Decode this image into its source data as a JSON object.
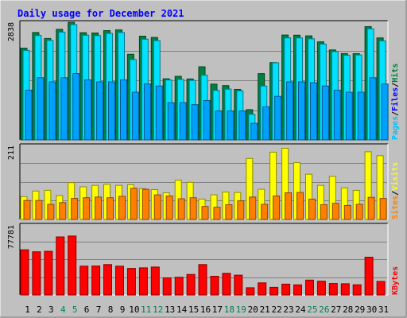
{
  "chart_data": {
    "type": "bar",
    "title": "Daily usage for December 2021",
    "categories": [
      "1",
      "2",
      "3",
      "4",
      "5",
      "6",
      "7",
      "8",
      "9",
      "10",
      "11",
      "12",
      "13",
      "14",
      "15",
      "16",
      "17",
      "18",
      "19",
      "20",
      "21",
      "22",
      "23",
      "24",
      "25",
      "26",
      "27",
      "28",
      "29",
      "30",
      "31"
    ],
    "weekend_days": [
      "4",
      "5",
      "11",
      "12",
      "18",
      "19",
      "25",
      "26"
    ],
    "panels": [
      {
        "id": "top",
        "max_label": "2838",
        "ymax": 2838,
        "legend": [
          "Hits",
          "Files",
          "Pages"
        ],
        "series": [
          {
            "name": "Hits",
            "color": "#008040",
            "values": [
              2212,
              2591,
              2446,
              2667,
              2838,
              2587,
              2580,
              2637,
              2653,
              2066,
              2502,
              2472,
              1474,
              1535,
              1471,
              1764,
              1346,
              1309,
              1217,
              731,
              1599,
              1865,
              2529,
              2526,
              2511,
              2367,
              2170,
              2083,
              2081,
              2733,
              2460
            ]
          },
          {
            "name": "Files",
            "color": "#00e0ff",
            "values": [
              2160,
              2520,
              2400,
              2600,
              2780,
              2525,
              2515,
              2570,
              2590,
              1940,
              2430,
              2395,
              1445,
              1460,
              1435,
              1560,
              1195,
              1225,
              1185,
              620,
              1300,
              1860,
              2460,
              2460,
              2440,
              2310,
              2130,
              2040,
              2050,
              2680,
              2390
            ]
          },
          {
            "name": "Pages",
            "color": "#00a0ff",
            "values": [
              1200,
              1500,
              1400,
              1500,
              1600,
              1450,
              1400,
              1400,
              1450,
              1150,
              1350,
              1300,
              900,
              900,
              850,
              950,
              700,
              700,
              700,
              400,
              800,
              1050,
              1400,
              1400,
              1380,
              1300,
              1200,
              1150,
              1150,
              1500,
              1350
            ]
          }
        ]
      },
      {
        "id": "middle",
        "max_label": "211",
        "ymax": 211,
        "legend": [
          "Visits",
          "Sites"
        ],
        "series": [
          {
            "name": "Visits",
            "color": "#ffff00",
            "values": [
              65,
              81,
              83,
              68,
              105,
              93,
              97,
              100,
              97,
              99,
              88,
              85,
              76,
              112,
              106,
              58,
              70,
              78,
              77,
              174,
              86,
              192,
              203,
              162,
              129,
              97,
              123,
              90,
              83,
              193,
              182
            ]
          },
          {
            "name": "Sites",
            "color": "#ff8000",
            "values": [
              54,
              54,
              43,
              48,
              60,
              62,
              64,
              62,
              66,
              89,
              86,
              70,
              67,
              59,
              62,
              37,
              35,
              42,
              53,
              64,
              43,
              67,
              76,
              77,
              58,
              42,
              46,
              40,
              43,
              63,
              60
            ]
          }
        ]
      },
      {
        "id": "bottom",
        "max_label": "77781",
        "ymax": 77781,
        "legend": [
          "KBytes"
        ],
        "series": [
          {
            "name": "KBytes",
            "color": "#ff0000",
            "values": [
              50200,
              48000,
              48500,
              64500,
              65500,
              32000,
              32200,
              33800,
              32000,
              29500,
              30100,
              31000,
              19000,
              19700,
              22800,
              33800,
              20800,
              24000,
              22000,
              8000,
              13400,
              8500,
              12000,
              11200,
              16500,
              15300,
              12700,
              12500,
              11300,
              42000,
              15000
            ]
          }
        ]
      }
    ]
  }
}
